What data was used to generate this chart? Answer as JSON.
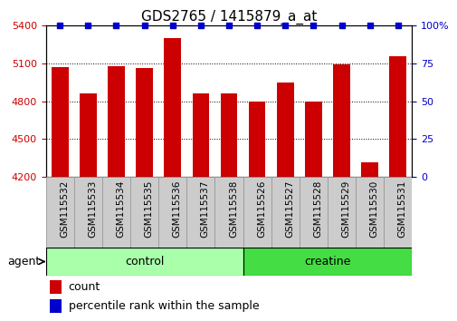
{
  "title": "GDS2765 / 1415879_a_at",
  "categories": [
    "GSM115532",
    "GSM115533",
    "GSM115534",
    "GSM115535",
    "GSM115536",
    "GSM115537",
    "GSM115538",
    "GSM115526",
    "GSM115527",
    "GSM115528",
    "GSM115529",
    "GSM115530",
    "GSM115531"
  ],
  "values": [
    5070,
    4860,
    5080,
    5060,
    5300,
    4860,
    4860,
    4800,
    4950,
    4800,
    5090,
    4310,
    5160
  ],
  "percentile_values": [
    100,
    100,
    100,
    100,
    100,
    100,
    100,
    100,
    100,
    100,
    100,
    100,
    100
  ],
  "bar_color": "#cc0000",
  "percentile_color": "#0000cc",
  "ylim_left": [
    4200,
    5400
  ],
  "ylim_right": [
    0,
    100
  ],
  "yticks_left": [
    4200,
    4500,
    4800,
    5100,
    5400
  ],
  "yticks_right": [
    0,
    25,
    50,
    75,
    100
  ],
  "n_control": 7,
  "n_creatine": 6,
  "control_color": "#aaffaa",
  "creatine_color": "#44dd44",
  "ticklabel_bg": "#cccccc",
  "ticklabel_border": "#999999",
  "agent_label": "agent",
  "control_label": "control",
  "creatine_label": "creatine",
  "legend_count_label": "count",
  "legend_percentile_label": "percentile rank within the sample",
  "bar_width": 0.6,
  "title_fontsize": 11,
  "tick_fontsize": 8,
  "label_fontsize": 9
}
